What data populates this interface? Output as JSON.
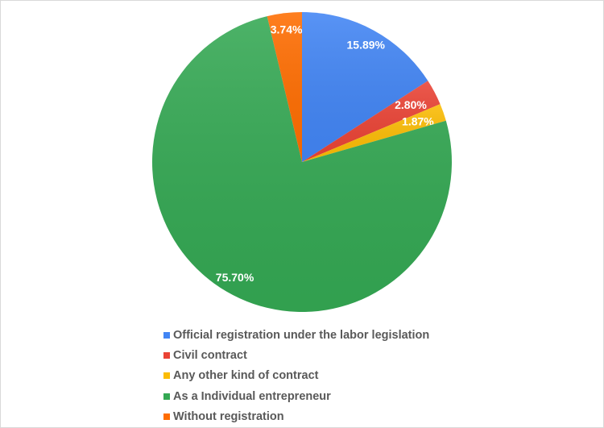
{
  "chart_data": {
    "type": "pie",
    "categories": [
      "Official registration under the labor legislation",
      "Civil contract",
      "Any other kind of contract",
      "As a Individual entrepreneur",
      "Without registration"
    ],
    "values": [
      15.89,
      2.8,
      1.87,
      75.7,
      3.74
    ],
    "data_labels": [
      "15.89%",
      "2.80%",
      "1.87%",
      "75.70%",
      "3.74%"
    ],
    "colors": [
      "#4285F4",
      "#EA4335",
      "#FBBC04",
      "#34A853",
      "#FF6D01"
    ],
    "start_angle": "top, clockwise",
    "legend_position": "bottom"
  }
}
